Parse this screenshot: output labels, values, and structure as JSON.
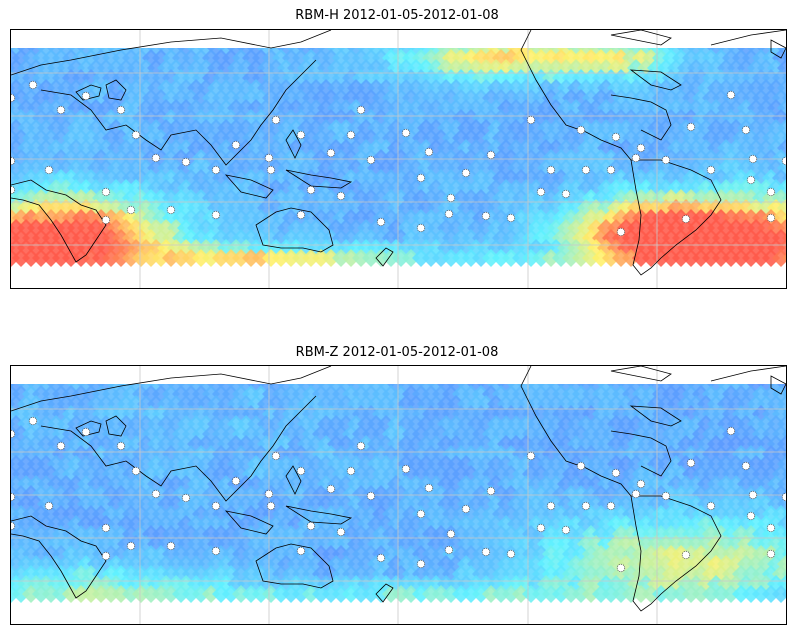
{
  "figure": {
    "panels": [
      {
        "id": "top",
        "title": "RBM-H 2012-01-05-2012-01-08"
      },
      {
        "id": "bottom",
        "title": "RBM-Z 2012-01-05-2012-01-08"
      }
    ]
  },
  "map": {
    "projection": "equirectangular (Pacific-centered)",
    "gridlines": true,
    "colormap": [
      "#6a6cff",
      "#5aa0ff",
      "#5ef0ff",
      "#fff06a",
      "#ff5a4a"
    ],
    "coastline_color": "#000000",
    "station_marker_color": "#ffffff"
  }
}
